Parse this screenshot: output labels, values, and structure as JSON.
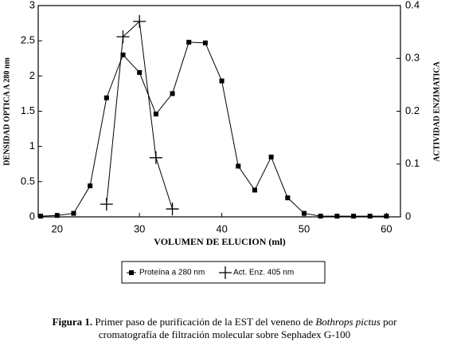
{
  "chart_data": {
    "type": "line",
    "x_label": "VOLUMEN DE ELUCION (ml)",
    "y_label": "DENSIDAD OPTICA A 280 nm",
    "y2_label": "ACTIVIDAD ENZIMATICA",
    "xlim": [
      17.7,
      61.7
    ],
    "xticks": [
      20,
      30,
      40,
      50,
      60
    ],
    "ylim": [
      0,
      3
    ],
    "yticks": [
      0,
      0.5,
      1,
      1.5,
      2,
      2.5,
      3
    ],
    "y2lim": [
      0,
      0.4
    ],
    "y2ticks": [
      0,
      0.1,
      0.2,
      0.3,
      0.4
    ],
    "series": [
      {
        "name": "Proteína a 280 nm",
        "color": "#000000",
        "marker": "square",
        "x": [
          18,
          20,
          22,
          24,
          26,
          28,
          30,
          32,
          34,
          36,
          38,
          40,
          42,
          44,
          46,
          48,
          50,
          52,
          54,
          56,
          58,
          60
        ],
        "values": [
          0.01,
          0.02,
          0.05,
          0.44,
          1.69,
          2.3,
          2.05,
          1.46,
          1.75,
          2.48,
          2.47,
          1.93,
          0.72,
          0.38,
          0.85,
          0.27,
          0.05,
          0.01,
          0.01,
          0.01,
          0.01,
          0.01
        ]
      },
      {
        "name": "Act. Enz. 405 nm",
        "color": "#000000",
        "marker": "plus",
        "axis": "y2",
        "x": [
          26,
          28,
          30,
          32,
          34
        ],
        "values": [
          0.024,
          0.341,
          0.37,
          0.112,
          0.015
        ]
      }
    ],
    "caption": {
      "label": "Figura 1.",
      "text_1": "Primer paso de purificación de la EST del veneno de",
      "species": "Bothrops pictus",
      "text_2": "por",
      "line_2": "cromatografía de filtración molecular sobre Sephadex G-100"
    }
  }
}
